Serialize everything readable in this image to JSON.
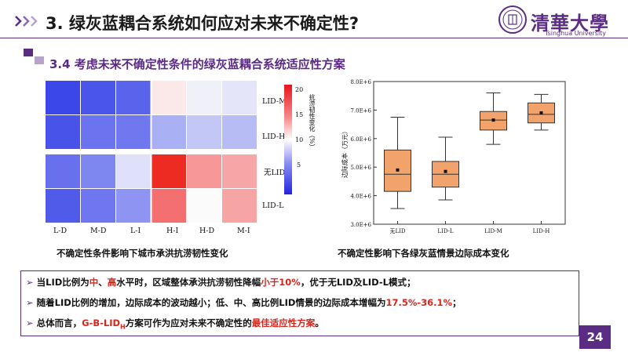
{
  "header": {
    "title": "3. 绿灰蓝耦合系统如何应对未来不确定性?",
    "logo_text": "清華大學",
    "logo_sub": "Tsinghua University"
  },
  "section": {
    "subtitle": "3.4 考虑未来不确定性条件的绿灰蓝耦合系统适应性方案"
  },
  "heatmap": {
    "row_labels": [
      "LID-M",
      "LID-H",
      "无LID",
      "LID-L"
    ],
    "col_labels": [
      "L-D",
      "M-D",
      "L-I",
      "H-I",
      "H-D",
      "M-I"
    ],
    "colorbar_ticks": [
      "20",
      "15",
      "10",
      "5"
    ],
    "colorbar_title": "抗涝韧性变化（%）",
    "caption": "不确定性条件影响下城市承洪抗涝韧性变化"
  },
  "chart_data": {
    "type": "box",
    "title": "",
    "ylabel": "边际成本（万元）",
    "ylim": [
      3000000,
      8000000
    ],
    "yticks": [
      "3.0E+6",
      "4.0E+6",
      "5.0E+6",
      "6.0E+6",
      "7.0E+6",
      "8.0E+6"
    ],
    "categories": [
      "无LID",
      "LID-L",
      "LID-M",
      "LID-H"
    ],
    "boxes": [
      {
        "min": 3550000,
        "q1": 4150000,
        "median": 4750000,
        "q3": 5600000,
        "max": 6750000,
        "mean": 4900000
      },
      {
        "min": 3850000,
        "q1": 4300000,
        "median": 4750000,
        "q3": 5200000,
        "max": 6050000,
        "mean": 4850000
      },
      {
        "min": 5800000,
        "q1": 6300000,
        "median": 6650000,
        "q3": 6950000,
        "max": 7600000,
        "mean": 6650000
      },
      {
        "min": 6300000,
        "q1": 6550000,
        "median": 6850000,
        "q3": 7250000,
        "max": 7550000,
        "mean": 6900000
      }
    ],
    "caption": "不确定性影响下各绿灰蓝情景边际成本变化"
  },
  "summary": {
    "b1_a": "当LID比例为",
    "b1_mid": "中",
    "b1_sep": "、",
    "b1_high": "高",
    "b1_b": "水平时，区域整体承洪抗涝韧性降幅",
    "b1_less": "小于10%",
    "b1_c": "，优于无LID及LID-L模式；",
    "b2_a": "随着LID比例的增加，边际成本的波动越小；低、中、高比例LID情景的边际成本增幅为",
    "b2_range": "17.5%-36.1%",
    "b2_b": "；",
    "b3_a": "总体而言，",
    "b3_scheme": "G-B-LID",
    "b3_sub": "H",
    "b3_b": "方案可作为应对未来不确定性的",
    "b3_best": "最佳适应性方案",
    "b3_c": "。"
  },
  "page": {
    "number": "24"
  },
  "colors": {
    "accent": "#5b2c83",
    "red": "#d8261b",
    "box_fill": "#f2a36b"
  }
}
